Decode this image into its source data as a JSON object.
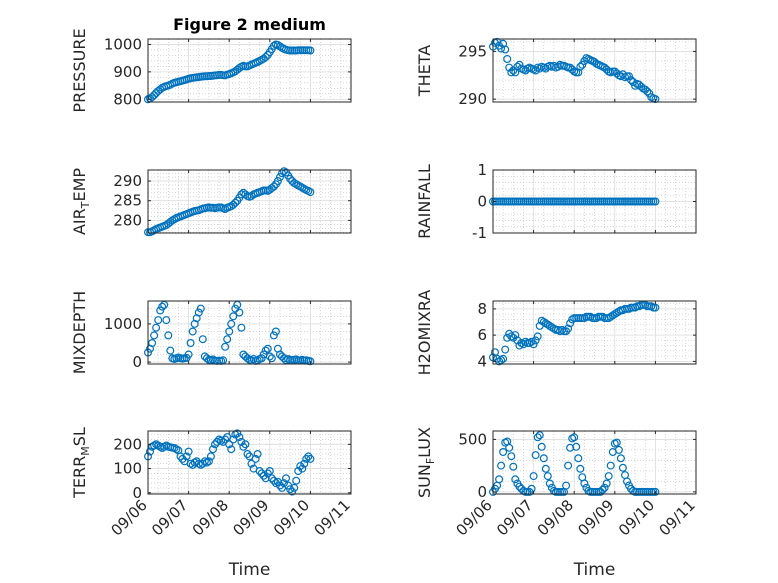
{
  "figure": {
    "title": "Figure 2 medium",
    "xlabel": "Time",
    "x_ticks": [
      "09/06",
      "09/07",
      "09/08",
      "09/09",
      "09/10",
      "09/11"
    ],
    "marker_color": "#0072BD"
  },
  "chart_data": [
    {
      "type": "scatter",
      "ylabel": "PRESSURE",
      "title": "Figure 2 medium",
      "ylim": [
        790,
        1020
      ],
      "yticks": [
        800,
        900,
        1000
      ],
      "grid": "on",
      "x": [
        0.0,
        0.05,
        0.1,
        0.15,
        0.2,
        0.25,
        0.3,
        0.35,
        0.4,
        0.45,
        0.5,
        0.55,
        0.6,
        0.65,
        0.7,
        0.75,
        0.8,
        0.85,
        0.9,
        0.95,
        1.0,
        1.05,
        1.1,
        1.15,
        1.2,
        1.25,
        1.3,
        1.35,
        1.4,
        1.45,
        1.5,
        1.55,
        1.6,
        1.65,
        1.7,
        1.75,
        1.8,
        1.85,
        1.9,
        1.95,
        2.0,
        2.05,
        2.1,
        2.15,
        2.2,
        2.25,
        2.3,
        2.35,
        2.4,
        2.45,
        2.5,
        2.55,
        2.6,
        2.65,
        2.7,
        2.75,
        2.8,
        2.85,
        2.9,
        2.95,
        3.0,
        3.05,
        3.1,
        3.15,
        3.2,
        3.25,
        3.3,
        3.35,
        3.4,
        3.45,
        3.5,
        3.55,
        3.6,
        3.65,
        3.7,
        3.75,
        3.8,
        3.85,
        3.9,
        3.95,
        4.0
      ],
      "y": [
        800,
        803,
        808,
        815,
        823,
        830,
        836,
        842,
        845,
        848,
        850,
        853,
        857,
        860,
        862,
        864,
        866,
        868,
        870,
        872,
        875,
        877,
        878,
        879,
        880,
        881,
        882,
        883,
        884,
        884,
        885,
        885,
        886,
        887,
        888,
        889,
        889,
        888,
        887,
        890,
        892,
        895,
        898,
        902,
        908,
        914,
        919,
        922,
        920,
        920,
        923,
        927,
        930,
        933,
        936,
        940,
        944,
        948,
        954,
        962,
        972,
        983,
        995,
        1000,
        998,
        993,
        988,
        984,
        981,
        979,
        978,
        978,
        978,
        978,
        979,
        979,
        979,
        979,
        979,
        979,
        978
      ]
    },
    {
      "type": "scatter",
      "ylabel": "THETA",
      "ylim": [
        289.7,
        296.3
      ],
      "yticks": [
        290,
        295
      ],
      "grid": "on",
      "x": [
        0.0,
        0.05,
        0.1,
        0.15,
        0.2,
        0.25,
        0.3,
        0.35,
        0.4,
        0.45,
        0.5,
        0.55,
        0.6,
        0.65,
        0.7,
        0.75,
        0.8,
        0.85,
        0.9,
        0.95,
        1.0,
        1.05,
        1.1,
        1.15,
        1.2,
        1.25,
        1.3,
        1.35,
        1.4,
        1.45,
        1.5,
        1.55,
        1.6,
        1.65,
        1.7,
        1.75,
        1.8,
        1.85,
        1.9,
        1.95,
        2.0,
        2.05,
        2.1,
        2.15,
        2.2,
        2.25,
        2.3,
        2.35,
        2.4,
        2.45,
        2.5,
        2.55,
        2.6,
        2.65,
        2.7,
        2.75,
        2.8,
        2.85,
        2.9,
        2.95,
        3.0,
        3.05,
        3.1,
        3.15,
        3.2,
        3.25,
        3.3,
        3.35,
        3.4,
        3.45,
        3.5,
        3.55,
        3.6,
        3.65,
        3.7,
        3.75,
        3.8,
        3.85,
        3.9,
        3.95,
        4.0
      ],
      "y": [
        295.5,
        295.9,
        296.0,
        295.6,
        295.3,
        295.8,
        295.2,
        294.2,
        293.3,
        292.8,
        293.0,
        292.8,
        293.4,
        293.6,
        293.2,
        293.1,
        293.0,
        293.2,
        293.3,
        293.2,
        293.1,
        293.0,
        293.3,
        293.2,
        293.4,
        293.3,
        293.2,
        293.4,
        293.5,
        293.4,
        293.5,
        293.3,
        293.4,
        293.6,
        293.5,
        293.5,
        293.4,
        293.3,
        293.3,
        293.1,
        292.9,
        292.8,
        292.8,
        293.4,
        293.6,
        294.0,
        294.3,
        294.2,
        294.1,
        294.0,
        293.9,
        293.7,
        293.6,
        293.5,
        293.4,
        293.3,
        293.1,
        292.9,
        292.8,
        292.9,
        292.9,
        292.7,
        292.5,
        292.4,
        292.6,
        292.3,
        292.4,
        292.4,
        292.0,
        291.8,
        291.4,
        291.6,
        291.5,
        291.3,
        291.1,
        291.0,
        290.8,
        290.6,
        290.2,
        290.1,
        290.0
      ]
    },
    {
      "type": "scatter",
      "ylabel": "AIR_TEMP",
      "ylim": [
        276.8,
        292.8
      ],
      "yticks": [
        280,
        285,
        290
      ],
      "grid": "on",
      "x": [
        0.0,
        0.05,
        0.1,
        0.15,
        0.2,
        0.25,
        0.3,
        0.35,
        0.4,
        0.45,
        0.5,
        0.55,
        0.6,
        0.65,
        0.7,
        0.75,
        0.8,
        0.85,
        0.9,
        0.95,
        1.0,
        1.05,
        1.1,
        1.15,
        1.2,
        1.25,
        1.3,
        1.35,
        1.4,
        1.45,
        1.5,
        1.55,
        1.6,
        1.65,
        1.7,
        1.75,
        1.8,
        1.85,
        1.9,
        1.95,
        2.0,
        2.05,
        2.1,
        2.15,
        2.2,
        2.25,
        2.3,
        2.35,
        2.4,
        2.45,
        2.5,
        2.55,
        2.6,
        2.65,
        2.7,
        2.75,
        2.8,
        2.85,
        2.9,
        2.95,
        3.0,
        3.05,
        3.1,
        3.15,
        3.2,
        3.25,
        3.3,
        3.35,
        3.4,
        3.45,
        3.5,
        3.55,
        3.6,
        3.65,
        3.7,
        3.75,
        3.8,
        3.85,
        3.9,
        3.95,
        4.0
      ],
      "y": [
        277.0,
        277.0,
        277.2,
        277.5,
        277.8,
        278.0,
        278.2,
        278.4,
        278.6,
        278.8,
        279.2,
        279.6,
        280.0,
        280.3,
        280.6,
        280.8,
        281.0,
        281.2,
        281.4,
        281.6,
        281.8,
        282.0,
        282.2,
        282.4,
        282.5,
        282.6,
        282.8,
        283.0,
        283.1,
        283.2,
        283.3,
        283.2,
        283.2,
        283.1,
        283.2,
        283.3,
        283.3,
        283.1,
        282.9,
        283.2,
        283.4,
        283.6,
        284.0,
        284.5,
        285.0,
        285.8,
        286.6,
        287.0,
        286.6,
        286.2,
        286.0,
        286.2,
        286.6,
        286.8,
        287.0,
        287.2,
        287.4,
        287.6,
        287.6,
        287.5,
        287.8,
        288.2,
        288.6,
        289.2,
        290.0,
        291.0,
        292.0,
        292.5,
        292.2,
        291.4,
        290.6,
        290.0,
        289.5,
        289.2,
        288.9,
        288.6,
        288.3,
        288.0,
        287.7,
        287.5,
        287.2
      ]
    },
    {
      "type": "scatter",
      "ylabel": "RAINFALL",
      "ylim": [
        -1,
        1
      ],
      "yticks": [
        -1,
        0,
        1
      ],
      "grid": "on",
      "x": [
        0.0,
        0.05,
        0.1,
        0.15,
        0.2,
        0.25,
        0.3,
        0.35,
        0.4,
        0.45,
        0.5,
        0.55,
        0.6,
        0.65,
        0.7,
        0.75,
        0.8,
        0.85,
        0.9,
        0.95,
        1.0,
        1.05,
        1.1,
        1.15,
        1.2,
        1.25,
        1.3,
        1.35,
        1.4,
        1.45,
        1.5,
        1.55,
        1.6,
        1.65,
        1.7,
        1.75,
        1.8,
        1.85,
        1.9,
        1.95,
        2.0,
        2.05,
        2.1,
        2.15,
        2.2,
        2.25,
        2.3,
        2.35,
        2.4,
        2.45,
        2.5,
        2.55,
        2.6,
        2.65,
        2.7,
        2.75,
        2.8,
        2.85,
        2.9,
        2.95,
        3.0,
        3.05,
        3.1,
        3.15,
        3.2,
        3.25,
        3.3,
        3.35,
        3.4,
        3.45,
        3.5,
        3.55,
        3.6,
        3.65,
        3.7,
        3.75,
        3.8,
        3.85,
        3.9,
        3.95,
        4.0
      ],
      "y": [
        0,
        0,
        0,
        0,
        0,
        0,
        0,
        0,
        0,
        0,
        0,
        0,
        0,
        0,
        0,
        0,
        0,
        0,
        0,
        0,
        0,
        0,
        0,
        0,
        0,
        0,
        0,
        0,
        0,
        0,
        0,
        0,
        0,
        0,
        0,
        0,
        0,
        0,
        0,
        0,
        0,
        0,
        0,
        0,
        0,
        0,
        0,
        0,
        0,
        0,
        0,
        0,
        0,
        0,
        0,
        0,
        0,
        0,
        0,
        0,
        0,
        0,
        0,
        0,
        0,
        0,
        0,
        0,
        0,
        0,
        0,
        0,
        0,
        0,
        0,
        0,
        0,
        0,
        0,
        0,
        0
      ]
    },
    {
      "type": "scatter",
      "ylabel": "MIXDEPTH",
      "ylim": [
        -50,
        1600
      ],
      "yticks": [
        0,
        1000
      ],
      "grid": "on",
      "x": [
        0.0,
        0.05,
        0.1,
        0.15,
        0.2,
        0.25,
        0.3,
        0.35,
        0.4,
        0.45,
        0.5,
        0.55,
        0.6,
        0.65,
        0.7,
        0.75,
        0.8,
        0.85,
        0.9,
        0.95,
        1.0,
        1.05,
        1.1,
        1.15,
        1.2,
        1.25,
        1.3,
        1.35,
        1.4,
        1.45,
        1.5,
        1.55,
        1.6,
        1.65,
        1.7,
        1.75,
        1.8,
        1.85,
        1.9,
        1.95,
        2.0,
        2.05,
        2.1,
        2.15,
        2.2,
        2.25,
        2.3,
        2.35,
        2.4,
        2.45,
        2.5,
        2.55,
        2.6,
        2.65,
        2.7,
        2.75,
        2.8,
        2.85,
        2.9,
        2.95,
        3.0,
        3.05,
        3.1,
        3.15,
        3.2,
        3.25,
        3.3,
        3.35,
        3.4,
        3.45,
        3.5,
        3.55,
        3.6,
        3.65,
        3.7,
        3.75,
        3.8,
        3.85,
        3.9,
        3.95,
        4.0
      ],
      "y": [
        250,
        350,
        500,
        700,
        900,
        1100,
        1350,
        1450,
        1500,
        1100,
        700,
        300,
        100,
        80,
        100,
        120,
        100,
        90,
        100,
        110,
        200,
        500,
        800,
        1000,
        1150,
        1300,
        1400,
        600,
        150,
        100,
        60,
        50,
        70,
        40,
        30,
        40,
        30,
        50,
        400,
        600,
        800,
        1000,
        1200,
        1400,
        1500,
        1300,
        900,
        200,
        150,
        100,
        60,
        40,
        80,
        30,
        50,
        80,
        100,
        200,
        300,
        350,
        150,
        100,
        700,
        800,
        350,
        200,
        150,
        100,
        50,
        80,
        60,
        50,
        60,
        70,
        40,
        50,
        60,
        40,
        50,
        30,
        20
      ]
    },
    {
      "type": "scatter",
      "ylabel": "H2OMIXRA",
      "ylim": [
        3.8,
        8.6
      ],
      "yticks": [
        4,
        6,
        8
      ],
      "grid": "on",
      "x": [
        0.0,
        0.05,
        0.1,
        0.15,
        0.2,
        0.25,
        0.3,
        0.35,
        0.4,
        0.45,
        0.5,
        0.55,
        0.6,
        0.65,
        0.7,
        0.75,
        0.8,
        0.85,
        0.9,
        0.95,
        1.0,
        1.05,
        1.1,
        1.15,
        1.2,
        1.25,
        1.3,
        1.35,
        1.4,
        1.45,
        1.5,
        1.55,
        1.6,
        1.65,
        1.7,
        1.75,
        1.8,
        1.85,
        1.9,
        1.95,
        2.0,
        2.05,
        2.1,
        2.15,
        2.2,
        2.25,
        2.3,
        2.35,
        2.4,
        2.45,
        2.5,
        2.55,
        2.6,
        2.65,
        2.7,
        2.75,
        2.8,
        2.85,
        2.9,
        2.95,
        3.0,
        3.05,
        3.1,
        3.15,
        3.2,
        3.25,
        3.3,
        3.35,
        3.4,
        3.45,
        3.5,
        3.55,
        3.6,
        3.65,
        3.7,
        3.75,
        3.8,
        3.85,
        3.9,
        3.95,
        4.0
      ],
      "y": [
        4.3,
        4.7,
        4.2,
        4.0,
        4.1,
        4.2,
        4.9,
        5.8,
        6.1,
        5.9,
        5.8,
        6.0,
        5.6,
        5.2,
        5.4,
        5.3,
        5.5,
        5.4,
        5.4,
        5.5,
        5.3,
        5.6,
        5.9,
        6.7,
        7.1,
        7.0,
        6.9,
        6.8,
        6.7,
        6.6,
        6.5,
        6.4,
        6.4,
        6.3,
        6.4,
        6.3,
        6.3,
        6.5,
        6.9,
        7.2,
        7.3,
        7.3,
        7.3,
        7.3,
        7.3,
        7.3,
        7.4,
        7.4,
        7.4,
        7.3,
        7.3,
        7.3,
        7.4,
        7.4,
        7.4,
        7.3,
        7.3,
        7.3,
        7.4,
        7.5,
        7.6,
        7.7,
        7.8,
        7.9,
        7.9,
        8.0,
        8.0,
        8.0,
        8.1,
        8.1,
        8.1,
        8.2,
        8.2,
        8.3,
        8.3,
        8.3,
        8.2,
        8.2,
        8.2,
        8.1,
        8.1
      ]
    },
    {
      "type": "scatter",
      "ylabel": "TERR_MSL",
      "ylim": [
        -5,
        255
      ],
      "yticks": [
        0,
        100,
        200
      ],
      "grid": "on",
      "x": [
        0.0,
        0.05,
        0.1,
        0.15,
        0.2,
        0.25,
        0.3,
        0.35,
        0.4,
        0.45,
        0.5,
        0.55,
        0.6,
        0.65,
        0.7,
        0.75,
        0.8,
        0.85,
        0.9,
        0.95,
        1.0,
        1.05,
        1.1,
        1.15,
        1.2,
        1.25,
        1.3,
        1.35,
        1.4,
        1.45,
        1.5,
        1.55,
        1.6,
        1.65,
        1.7,
        1.75,
        1.8,
        1.85,
        1.9,
        1.95,
        2.0,
        2.05,
        2.1,
        2.15,
        2.2,
        2.25,
        2.3,
        2.35,
        2.4,
        2.45,
        2.5,
        2.55,
        2.6,
        2.65,
        2.7,
        2.75,
        2.8,
        2.85,
        2.9,
        2.95,
        3.0,
        3.05,
        3.1,
        3.15,
        3.2,
        3.25,
        3.3,
        3.35,
        3.4,
        3.45,
        3.5,
        3.55,
        3.6,
        3.65,
        3.7,
        3.75,
        3.8,
        3.85,
        3.9,
        3.95,
        4.0
      ],
      "y": [
        150,
        170,
        190,
        195,
        200,
        195,
        190,
        185,
        190,
        195,
        190,
        188,
        186,
        185,
        180,
        175,
        150,
        140,
        130,
        150,
        170,
        120,
        115,
        125,
        130,
        120,
        115,
        120,
        130,
        125,
        130,
        150,
        180,
        200,
        210,
        220,
        215,
        210,
        220,
        230,
        200,
        180,
        220,
        240,
        245,
        230,
        210,
        190,
        200,
        160,
        150,
        120,
        100,
        140,
        160,
        90,
        80,
        70,
        60,
        80,
        90,
        60,
        50,
        40,
        45,
        30,
        20,
        40,
        60,
        30,
        15,
        5,
        20,
        50,
        90,
        110,
        100,
        120,
        140,
        150,
        140
      ]
    },
    {
      "type": "scatter",
      "ylabel": "SUN_FLUX",
      "ylim": [
        -20,
        580
      ],
      "yticks": [
        0,
        500
      ],
      "grid": "on",
      "x": [
        0.0,
        0.05,
        0.1,
        0.15,
        0.2,
        0.25,
        0.3,
        0.35,
        0.4,
        0.45,
        0.5,
        0.55,
        0.6,
        0.65,
        0.7,
        0.75,
        0.8,
        0.85,
        0.9,
        0.95,
        1.0,
        1.05,
        1.1,
        1.15,
        1.2,
        1.25,
        1.3,
        1.35,
        1.4,
        1.45,
        1.5,
        1.55,
        1.6,
        1.65,
        1.7,
        1.75,
        1.8,
        1.85,
        1.9,
        1.95,
        2.0,
        2.05,
        2.1,
        2.15,
        2.2,
        2.25,
        2.3,
        2.35,
        2.4,
        2.45,
        2.5,
        2.55,
        2.6,
        2.65,
        2.7,
        2.75,
        2.8,
        2.85,
        2.9,
        2.95,
        3.0,
        3.05,
        3.1,
        3.15,
        3.2,
        3.25,
        3.3,
        3.35,
        3.4,
        3.45,
        3.5,
        3.55,
        3.6,
        3.65,
        3.7,
        3.75,
        3.8,
        3.85,
        3.9,
        3.95,
        4.0
      ],
      "y": [
        0,
        30,
        60,
        120,
        250,
        380,
        470,
        480,
        420,
        340,
        240,
        120,
        80,
        50,
        30,
        10,
        0,
        0,
        0,
        30,
        150,
        350,
        520,
        540,
        430,
        320,
        220,
        150,
        80,
        40,
        10,
        0,
        0,
        0,
        0,
        0,
        60,
        250,
        420,
        510,
        520,
        430,
        320,
        220,
        140,
        80,
        40,
        10,
        0,
        0,
        0,
        0,
        0,
        0,
        20,
        40,
        80,
        150,
        250,
        380,
        460,
        470,
        400,
        320,
        230,
        160,
        100,
        60,
        30,
        10,
        0,
        0,
        0,
        0,
        0,
        0,
        0,
        0,
        0,
        0,
        0
      ]
    }
  ]
}
